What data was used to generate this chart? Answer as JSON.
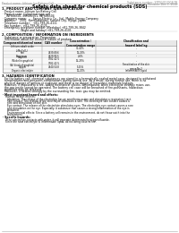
{
  "title": "Safety data sheet for chemical products (SDS)",
  "header_left": "Product name: Lithium Ion Battery Cell",
  "header_right_line1": "Substance number: STPS10170CB-TR",
  "header_right_line2": "Established / Revision: Dec 7, 2018",
  "bg_color": "#ffffff",
  "section1_title": "1. PRODUCT AND COMPANY IDENTIFICATION",
  "section1_lines": [
    "· Product name: Lithium Ion Battery Cell",
    "· Product code: Cylindrical-type cell",
    "    INF666501, INF686501, INF686504",
    "· Company name:       Sanyo Electric Co., Ltd., Mobile Energy Company",
    "· Address:    2001  Kamikosakami, Sumoto City, Hyogo, Japan",
    "· Telephone number:   +81-799-26-4111",
    "· Fax number:  +81-799-26-4125",
    "· Emergency telephone number (Weekday) +81-799-26-3842",
    "                    (Night and holiday) +81-799-26-4101"
  ],
  "section2_title": "2. COMPOSITION / INFORMATION ON INGREDIENTS",
  "section2_intro": "· Substance or preparation: Preparation",
  "section2_sub": "· Information about the chemical nature of product:",
  "table_headers": [
    "Component/chemical name",
    "CAS number",
    "Concentration /\nConcentration range",
    "Classification and\nhazard labeling"
  ],
  "table_rows": [
    [
      "Lithium cobalt oxide\n(LiMnCoO₂)",
      "-",
      "30-40%",
      "-"
    ],
    [
      "Iron",
      "7439-89-6",
      "16-26%",
      "-"
    ],
    [
      "Aluminum",
      "7429-90-5",
      "2-6%",
      "-"
    ],
    [
      "Graphite\n(Nickel in graphite)\n(All kinds of graphite)",
      "7782-42-5\n7782-42-5",
      "15-25%",
      "-"
    ],
    [
      "Copper",
      "7440-50-8",
      "5-15%",
      "Sensitization of the skin\ngroup No.2"
    ],
    [
      "Organic electrolyte",
      "-",
      "10-20%",
      "Inflammable liquid"
    ]
  ],
  "section3_title": "3. HAZARDS IDENTIFICATION",
  "section3_para": [
    "For the battery cell, chemical substances are stored in a hermetically sealed metal case, designed to withstand",
    "temperatures and pressures-combinations during normal use. As a result, during normal use, there is no",
    "physical danger of ignition or explosion and there is no danger of hazardous materials leakage.",
    "However, if exposed to a fire, added mechanical shocks, decomposed, when electrolyte strongly mixes use,",
    "the gas inside cannot be operated. The battery cell case will be breached of fire-pollutants, hazardous",
    "materials may be released.",
    "Moreover, if heated strongly by the surrounding fire, toxic gas may be emitted."
  ],
  "section3_bullet1": "· Most important hazard and effects:",
  "section3_human": "Human health effects:",
  "section3_inhalation": "Inhalation: The release of the electrolyte has an anesthesia action and stimulates a respiratory tract.",
  "section3_skin": [
    "Skin contact: The release of the electrolyte stimulates a skin. The electrolyte skin contact causes a",
    "sore and stimulation on the skin."
  ],
  "section3_eye": [
    "Eye contact: The release of the electrolyte stimulates eyes. The electrolyte eye contact causes a sore",
    "and stimulation on the eye. Especially, a substance that causes a strong inflammation of the eye is",
    "contained."
  ],
  "section3_env": [
    "Environmental effects: Since a battery cell remains in the environment, do not throw out it into the",
    "environment."
  ],
  "section3_specific": "· Specific hazards:",
  "section3_specific_lines": [
    "If the electrolyte contacts with water, it will generate detrimental hydrogen fluoride.",
    "Since the neat electrolyte is inflammable liquid, do not bring close to fire."
  ]
}
